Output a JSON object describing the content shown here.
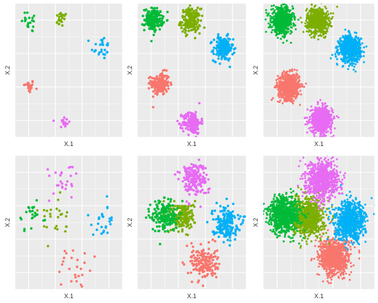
{
  "chart_data": [
    {
      "type": "scatter",
      "xlabel": "X.1",
      "ylabel": "X.2",
      "grid": true,
      "xlim": [
        0,
        10
      ],
      "ylim": [
        0,
        10
      ],
      "spread": 0.5,
      "series": [
        {
          "color": "#F8766D",
          "center": [
            1.3,
            3.8
          ],
          "count": 25,
          "clusterSpread": 0.25
        },
        {
          "color": "#7CAE00",
          "center": [
            4.3,
            8.8
          ],
          "count": 22,
          "clusterSpread": 0.28
        },
        {
          "color": "#00BA38",
          "center": [
            1.5,
            8.7
          ],
          "count": 20,
          "clusterSpread": 0.45
        },
        {
          "color": "#00B0F6",
          "center": [
            8.0,
            6.7
          ],
          "count": 25,
          "clusterSpread": 0.45
        },
        {
          "color": "#E76BF3",
          "center": [
            4.6,
            1.1
          ],
          "count": 20,
          "clusterSpread": 0.25
        }
      ]
    },
    {
      "type": "scatter",
      "xlabel": "X.1",
      "ylabel": "X.2",
      "grid": true,
      "xlim": [
        0,
        10
      ],
      "ylim": [
        0,
        10
      ],
      "series": [
        {
          "color": "#F8766D",
          "center": [
            2.1,
            4.0
          ],
          "count": 180,
          "clusterSpread": 0.42
        },
        {
          "color": "#7CAE00",
          "center": [
            4.9,
            8.7
          ],
          "count": 180,
          "clusterSpread": 0.45
        },
        {
          "color": "#00BA38",
          "center": [
            1.5,
            8.8
          ],
          "count": 180,
          "clusterSpread": 0.42
        },
        {
          "color": "#00B0F6",
          "center": [
            7.9,
            6.6
          ],
          "count": 180,
          "clusterSpread": 0.45
        },
        {
          "color": "#E76BF3",
          "center": [
            5.0,
            1.1
          ],
          "count": 180,
          "clusterSpread": 0.42
        }
      ]
    },
    {
      "type": "scatter",
      "xlabel": "X.1",
      "ylabel": "X.2",
      "grid": true,
      "xlim": [
        0,
        10
      ],
      "ylim": [
        0,
        10
      ],
      "series": [
        {
          "color": "#F8766D",
          "center": [
            2.3,
            3.8
          ],
          "count": 700,
          "clusterSpread": 0.48
        },
        {
          "color": "#7CAE00",
          "center": [
            4.9,
            8.7
          ],
          "count": 700,
          "clusterSpread": 0.48
        },
        {
          "color": "#00BA38",
          "center": [
            1.7,
            8.7
          ],
          "count": 700,
          "clusterSpread": 0.48
        },
        {
          "color": "#00B0F6",
          "center": [
            7.8,
            6.6
          ],
          "count": 700,
          "clusterSpread": 0.48
        },
        {
          "color": "#E76BF3",
          "center": [
            5.2,
            1.3
          ],
          "count": 700,
          "clusterSpread": 0.48
        }
      ]
    },
    {
      "type": "scatter",
      "xlabel": "X.1",
      "ylabel": "X.2",
      "grid": true,
      "xlim": [
        0,
        10
      ],
      "ylim": [
        0,
        10
      ],
      "series": [
        {
          "color": "#F8766D",
          "center": [
            5.6,
            1.6
          ],
          "count": 25,
          "clusterSpread": 0.85
        },
        {
          "color": "#7CAE00",
          "center": [
            3.4,
            5.4
          ],
          "count": 25,
          "clusterSpread": 0.8
        },
        {
          "color": "#00BA38",
          "center": [
            1.5,
            5.6
          ],
          "count": 25,
          "clusterSpread": 0.6
        },
        {
          "color": "#00B0F6",
          "center": [
            8.1,
            4.8
          ],
          "count": 25,
          "clusterSpread": 0.65
        },
        {
          "color": "#E76BF3",
          "center": [
            4.8,
            8.1
          ],
          "count": 25,
          "clusterSpread": 0.8
        }
      ]
    },
    {
      "type": "scatter",
      "xlabel": "X.1",
      "ylabel": "X.2",
      "grid": true,
      "xlim": [
        0,
        10
      ],
      "ylim": [
        0,
        10
      ],
      "series": [
        {
          "color": "#F8766D",
          "center": [
            6.1,
            2.0
          ],
          "count": 180,
          "clusterSpread": 0.62
        },
        {
          "color": "#7CAE00",
          "center": [
            4.2,
            5.4
          ],
          "count": 180,
          "clusterSpread": 0.55
        },
        {
          "color": "#00BA38",
          "center": [
            2.5,
            5.5
          ],
          "count": 180,
          "clusterSpread": 0.6
        },
        {
          "color": "#00B0F6",
          "center": [
            8.1,
            5.0
          ],
          "count": 180,
          "clusterSpread": 0.6
        },
        {
          "color": "#E76BF3",
          "center": [
            5.2,
            8.3
          ],
          "count": 180,
          "clusterSpread": 0.62
        }
      ]
    },
    {
      "type": "scatter",
      "xlabel": "X.1",
      "ylabel": "X.2",
      "grid": true,
      "xlim": [
        0,
        10
      ],
      "ylim": [
        0,
        10
      ],
      "series": [
        {
          "color": "#F8766D",
          "center": [
            6.4,
            2.4
          ],
          "count": 800,
          "clusterSpread": 0.7
        },
        {
          "color": "#7CAE00",
          "center": [
            4.0,
            5.4
          ],
          "count": 800,
          "clusterSpread": 0.7
        },
        {
          "color": "#00BA38",
          "center": [
            1.9,
            5.6
          ],
          "count": 800,
          "clusterSpread": 0.7
        },
        {
          "color": "#00B0F6",
          "center": [
            7.8,
            5.1
          ],
          "count": 800,
          "clusterSpread": 0.7
        },
        {
          "color": "#E76BF3",
          "center": [
            5.3,
            8.2
          ],
          "count": 800,
          "clusterSpread": 0.7
        }
      ]
    }
  ]
}
